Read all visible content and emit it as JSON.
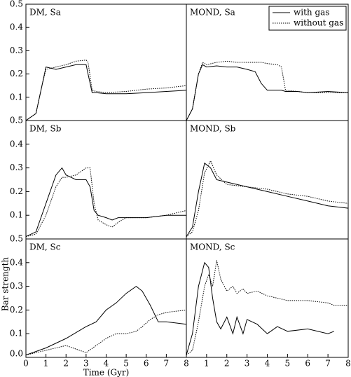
{
  "chart_data": [
    {
      "type": "line",
      "title": "DM, Sa",
      "xlim": [
        0,
        8
      ],
      "ylim": [
        0,
        0.5
      ],
      "yticks": [
        0.1,
        0.2,
        0.3,
        0.4,
        0.5
      ],
      "x": [
        0,
        0.5,
        0.8,
        1,
        1.5,
        2,
        2.5,
        3,
        3.1,
        3.3,
        3.5,
        4,
        5,
        6,
        7,
        8
      ],
      "series": [
        {
          "name": "with gas",
          "color": "#000000",
          "dash": "solid",
          "values": [
            0,
            0.03,
            0.15,
            0.23,
            0.22,
            0.23,
            0.24,
            0.24,
            0.2,
            0.12,
            0.12,
            0.115,
            0.115,
            0.12,
            0.125,
            0.13
          ]
        },
        {
          "name": "without gas",
          "color": "#000000",
          "dash": "dotted",
          "values": [
            0,
            0.03,
            0.15,
            0.22,
            0.23,
            0.24,
            0.255,
            0.26,
            0.25,
            0.13,
            0.125,
            0.12,
            0.125,
            0.135,
            0.14,
            0.15
          ]
        }
      ]
    },
    {
      "type": "line",
      "title": "MOND, Sa",
      "xlim": [
        0,
        8
      ],
      "ylim": [
        0,
        0.5
      ],
      "legend": "upper right",
      "x": [
        0,
        0.3,
        0.6,
        0.8,
        1,
        1.5,
        2,
        2.5,
        3,
        3.4,
        3.7,
        4,
        4.5,
        4.7,
        4.9,
        5.5,
        6,
        7,
        8
      ],
      "series": [
        {
          "name": "with gas",
          "color": "#000000",
          "dash": "solid",
          "values": [
            0,
            0.05,
            0.2,
            0.24,
            0.23,
            0.235,
            0.23,
            0.23,
            0.22,
            0.21,
            0.16,
            0.13,
            0.13,
            0.13,
            0.125,
            0.125,
            0.12,
            0.125,
            0.12
          ]
        },
        {
          "name": "without gas",
          "color": "#000000",
          "dash": "dotted",
          "values": [
            0,
            0.05,
            0.2,
            0.25,
            0.24,
            0.25,
            0.255,
            0.25,
            0.25,
            0.25,
            0.25,
            0.245,
            0.24,
            0.23,
            0.13,
            0.125,
            0.12,
            0.12,
            0.12
          ]
        }
      ]
    },
    {
      "type": "line",
      "title": "DM, Sb",
      "xlim": [
        0,
        8
      ],
      "ylim": [
        0,
        0.5
      ],
      "yticks": [
        0.1,
        0.2,
        0.3,
        0.4,
        0.5
      ],
      "x": [
        0,
        0.5,
        1,
        1.5,
        1.8,
        2,
        2.5,
        3,
        3.2,
        3.4,
        3.6,
        4,
        4.3,
        4.6,
        5,
        6,
        7,
        8
      ],
      "series": [
        {
          "name": "with gas",
          "color": "#000000",
          "dash": "solid",
          "values": [
            0.01,
            0.03,
            0.15,
            0.27,
            0.3,
            0.27,
            0.25,
            0.25,
            0.22,
            0.12,
            0.1,
            0.09,
            0.08,
            0.09,
            0.09,
            0.09,
            0.1,
            0.1
          ]
        },
        {
          "name": "without gas",
          "color": "#000000",
          "dash": "dotted",
          "values": [
            0.01,
            0.02,
            0.1,
            0.22,
            0.26,
            0.26,
            0.27,
            0.3,
            0.3,
            0.15,
            0.08,
            0.06,
            0.05,
            0.07,
            0.09,
            0.09,
            0.1,
            0.12
          ]
        }
      ]
    },
    {
      "type": "line",
      "title": "MOND, Sb",
      "xlim": [
        0,
        8
      ],
      "ylim": [
        0,
        0.5
      ],
      "x": [
        0,
        0.3,
        0.6,
        0.9,
        1.2,
        1.5,
        2,
        3,
        4,
        5,
        6,
        7,
        8
      ],
      "series": [
        {
          "name": "with gas",
          "color": "#000000",
          "dash": "solid",
          "values": [
            0.01,
            0.05,
            0.2,
            0.32,
            0.3,
            0.25,
            0.24,
            0.22,
            0.2,
            0.18,
            0.16,
            0.14,
            0.13
          ]
        },
        {
          "name": "without gas",
          "color": "#000000",
          "dash": "dotted",
          "values": [
            0.01,
            0.03,
            0.12,
            0.28,
            0.33,
            0.27,
            0.23,
            0.22,
            0.21,
            0.19,
            0.18,
            0.16,
            0.15
          ]
        }
      ]
    },
    {
      "type": "line",
      "title": "DM, Sc",
      "xlabel": "Time (Gyr)",
      "ylabel": "Bar strength",
      "xlim": [
        0,
        8
      ],
      "ylim": [
        0,
        0.5
      ],
      "xticks": [
        0,
        1,
        2,
        3,
        4,
        5,
        6,
        7,
        8
      ],
      "yticks": [
        {
          "value": 0,
          "label": "0.0"
        },
        0.1,
        0.2,
        0.3,
        0.4,
        0.5
      ],
      "x": [
        0,
        1,
        2,
        3,
        3.5,
        4,
        4.5,
        5,
        5.5,
        5.8,
        6.2,
        6.6,
        7,
        8
      ],
      "series": [
        {
          "name": "with gas",
          "color": "#000000",
          "dash": "solid",
          "values": [
            0.01,
            0.04,
            0.08,
            0.13,
            0.15,
            0.2,
            0.23,
            0.27,
            0.3,
            0.28,
            0.22,
            0.15,
            0.15,
            0.14
          ]
        },
        {
          "name": "without gas",
          "color": "#000000",
          "dash": "dotted",
          "values": [
            0.01,
            0.03,
            0.05,
            0.02,
            0.05,
            0.08,
            0.1,
            0.1,
            0.11,
            0.13,
            0.16,
            0.18,
            0.19,
            0.2
          ]
        }
      ]
    },
    {
      "type": "line",
      "title": "MOND, Sc",
      "xlim": [
        0,
        8
      ],
      "ylim": [
        0,
        0.5
      ],
      "xticks": [
        1,
        2,
        3,
        4,
        5,
        6,
        7,
        8
      ],
      "x": [
        0,
        0.3,
        0.6,
        0.9,
        1.1,
        1.3,
        1.5,
        1.7,
        2,
        2.3,
        2.5,
        2.8,
        3,
        3.5,
        4,
        4.5,
        5,
        6,
        7,
        7.3,
        8
      ],
      "series": [
        {
          "name": "with gas",
          "color": "#000000",
          "dash": "solid",
          "values": [
            0.01,
            0.1,
            0.3,
            0.4,
            0.38,
            0.25,
            0.15,
            0.12,
            0.17,
            0.1,
            0.17,
            0.1,
            0.16,
            0.14,
            0.1,
            0.13,
            0.11,
            0.12,
            0.1,
            0.11,
            null
          ]
        },
        {
          "name": "without gas",
          "color": "#000000",
          "dash": "dotted",
          "values": [
            0.01,
            0.03,
            0.15,
            0.3,
            0.35,
            0.3,
            0.41,
            0.33,
            0.28,
            0.3,
            0.27,
            0.29,
            0.27,
            0.28,
            0.26,
            0.25,
            0.24,
            0.24,
            0.23,
            0.22,
            0.22
          ]
        }
      ]
    }
  ]
}
